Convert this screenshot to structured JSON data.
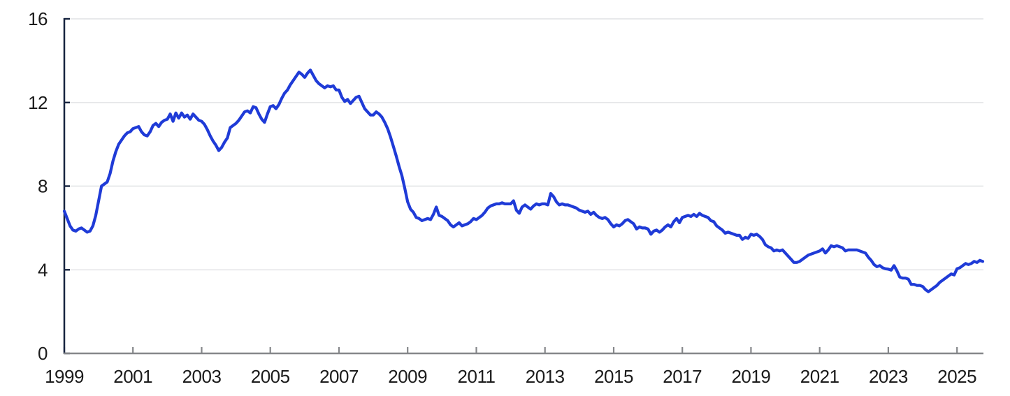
{
  "chart_data": {
    "type": "line",
    "title": "",
    "xlabel": "",
    "ylabel": "",
    "grid": "horizontal",
    "legend": "none",
    "ylim": [
      0,
      16
    ],
    "x_range": [
      1999.0,
      2025.77
    ],
    "y_ticks": [
      0,
      4,
      8,
      12,
      16
    ],
    "x_ticks": [
      1999,
      2001,
      2003,
      2005,
      2007,
      2009,
      2011,
      2013,
      2015,
      2017,
      2019,
      2021,
      2023,
      2025
    ],
    "series": [
      {
        "x_start": 1999.0,
        "x_step": 0.0833333,
        "frequency": "monthly",
        "values": [
          6.8,
          6.45,
          6.1,
          5.9,
          5.85,
          5.95,
          6.0,
          5.9,
          5.8,
          5.85,
          6.1,
          6.6,
          7.3,
          8.0,
          8.1,
          8.2,
          8.6,
          9.2,
          9.65,
          10.0,
          10.2,
          10.4,
          10.55,
          10.6,
          10.75,
          10.8,
          10.85,
          10.6,
          10.45,
          10.4,
          10.6,
          10.9,
          11.0,
          10.85,
          11.05,
          11.15,
          11.2,
          11.45,
          11.1,
          11.5,
          11.25,
          11.5,
          11.3,
          11.4,
          11.2,
          11.45,
          11.3,
          11.15,
          11.1,
          10.95,
          10.7,
          10.4,
          10.15,
          9.95,
          9.7,
          9.85,
          10.1,
          10.3,
          10.8,
          10.9,
          11.0,
          11.15,
          11.35,
          11.55,
          11.6,
          11.5,
          11.8,
          11.75,
          11.45,
          11.2,
          11.05,
          11.45,
          11.8,
          11.85,
          11.7,
          11.9,
          12.2,
          12.45,
          12.6,
          12.85,
          13.05,
          13.25,
          13.45,
          13.35,
          13.2,
          13.4,
          13.55,
          13.3,
          13.05,
          12.9,
          12.8,
          12.7,
          12.8,
          12.75,
          12.8,
          12.6,
          12.6,
          12.25,
          12.05,
          12.15,
          11.95,
          12.1,
          12.25,
          12.3,
          12.0,
          11.7,
          11.55,
          11.4,
          11.4,
          11.55,
          11.45,
          11.3,
          11.05,
          10.75,
          10.35,
          9.9,
          9.45,
          8.95,
          8.5,
          7.9,
          7.25,
          6.9,
          6.75,
          6.5,
          6.45,
          6.35,
          6.4,
          6.45,
          6.4,
          6.65,
          7.0,
          6.6,
          6.55,
          6.45,
          6.35,
          6.15,
          6.05,
          6.15,
          6.25,
          6.1,
          6.15,
          6.2,
          6.3,
          6.45,
          6.4,
          6.5,
          6.6,
          6.75,
          6.95,
          7.05,
          7.1,
          7.15,
          7.15,
          7.2,
          7.15,
          7.15,
          7.15,
          7.3,
          6.85,
          6.7,
          7.0,
          7.1,
          7.0,
          6.9,
          7.05,
          7.15,
          7.1,
          7.15,
          7.15,
          7.1,
          7.65,
          7.5,
          7.25,
          7.1,
          7.15,
          7.1,
          7.1,
          7.05,
          7.0,
          6.95,
          6.85,
          6.8,
          6.75,
          6.8,
          6.65,
          6.75,
          6.6,
          6.5,
          6.45,
          6.5,
          6.4,
          6.2,
          6.05,
          6.15,
          6.1,
          6.2,
          6.35,
          6.4,
          6.3,
          6.2,
          5.95,
          6.05,
          6.0,
          6.0,
          5.95,
          5.7,
          5.85,
          5.9,
          5.8,
          5.9,
          6.05,
          6.15,
          6.05,
          6.3,
          6.45,
          6.25,
          6.5,
          6.55,
          6.6,
          6.55,
          6.65,
          6.55,
          6.7,
          6.6,
          6.55,
          6.5,
          6.35,
          6.3,
          6.1,
          6.0,
          5.9,
          5.75,
          5.8,
          5.75,
          5.7,
          5.65,
          5.65,
          5.45,
          5.55,
          5.5,
          5.7,
          5.65,
          5.7,
          5.6,
          5.45,
          5.2,
          5.1,
          5.05,
          4.9,
          4.95,
          4.9,
          4.95,
          4.8,
          4.65,
          4.5,
          4.35,
          4.35,
          4.4,
          4.5,
          4.6,
          4.7,
          4.75,
          4.8,
          4.85,
          4.9,
          5.0,
          4.8,
          4.95,
          5.15,
          5.1,
          5.15,
          5.1,
          5.05,
          4.9,
          4.95,
          4.95,
          4.95,
          4.95,
          4.9,
          4.85,
          4.8,
          4.6,
          4.45,
          4.25,
          4.15,
          4.2,
          4.1,
          4.05,
          4.03,
          3.98,
          4.2,
          3.95,
          3.65,
          3.6,
          3.6,
          3.55,
          3.3,
          3.3,
          3.25,
          3.25,
          3.2,
          3.05,
          2.95,
          3.05,
          3.15,
          3.25,
          3.4,
          3.5,
          3.6,
          3.7,
          3.8,
          3.75,
          4.05,
          4.1,
          4.2,
          4.3,
          4.25,
          4.3,
          4.4,
          4.35,
          4.45,
          4.4
        ]
      }
    ],
    "colors": {
      "line": "#1f3bd7",
      "gridline": "#e5e6e8",
      "y_axis": "#16233f",
      "x_axis": "#85878a",
      "tick_label": "#1b1b1b",
      "background": "#ffffff"
    }
  }
}
